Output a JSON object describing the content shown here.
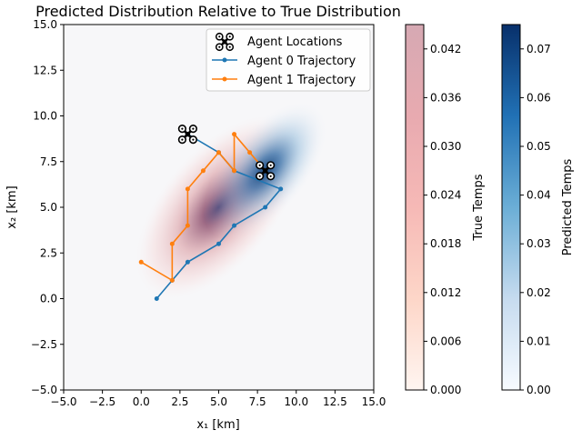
{
  "chart_data": {
    "type": "line",
    "title": "Predicted Distribution Relative to True Distribution",
    "xlabel": "x₁ [km]",
    "ylabel": "x₂ [km]",
    "xlim": [
      -5,
      15
    ],
    "ylim": [
      -5,
      15
    ],
    "xticks": [
      "−5.0",
      "−2.5",
      "0.0",
      "2.5",
      "5.0",
      "7.5",
      "10.0",
      "12.5",
      "15.0"
    ],
    "yticks": [
      "−5.0",
      "−2.5",
      "0.0",
      "2.5",
      "5.0",
      "7.5",
      "10.0",
      "12.5",
      "15.0"
    ],
    "grid": false,
    "legend_position": "top-right",
    "legend": {
      "agent_locations": "Agent Locations",
      "agent0": "Agent 0 Trajectory",
      "agent1": "Agent 1 Trajectory"
    },
    "series": [
      {
        "name": "Agent 0 Trajectory",
        "color": "#1f77b4",
        "x": [
          1,
          2,
          3,
          5,
          6,
          8,
          9,
          6,
          5,
          3
        ],
        "y": [
          0,
          1,
          2,
          3,
          4,
          5,
          6,
          7,
          8,
          9
        ]
      },
      {
        "name": "Agent 1 Trajectory",
        "color": "#ff7f0e",
        "x": [
          0,
          2,
          2,
          3,
          3,
          4,
          5,
          6,
          6,
          7,
          8
        ],
        "y": [
          2,
          1,
          3,
          4,
          6,
          7,
          8,
          7,
          9,
          8,
          7
        ]
      }
    ],
    "agent_locations": [
      {
        "x": 3,
        "y": 9
      },
      {
        "x": 8,
        "y": 7
      }
    ],
    "distributions": [
      {
        "name": "True Temps",
        "colormap": "Reds",
        "mean": [
          5,
          5
        ],
        "peak": 0.045
      },
      {
        "name": "Predicted Temps",
        "colormap": "Blues",
        "mean": [
          8,
          7
        ],
        "peak": 0.075
      }
    ],
    "colorbars": [
      {
        "label": "True Temps",
        "colormap": "Reds",
        "range": [
          0,
          0.045
        ],
        "ticks": [
          "0.000",
          "0.006",
          "0.012",
          "0.018",
          "0.024",
          "0.030",
          "0.036",
          "0.042"
        ]
      },
      {
        "label": "Predicted Temps",
        "colormap": "Blues",
        "range": [
          0,
          0.075
        ],
        "ticks": [
          "0.00",
          "0.01",
          "0.02",
          "0.03",
          "0.04",
          "0.05",
          "0.06",
          "0.07"
        ]
      }
    ]
  }
}
